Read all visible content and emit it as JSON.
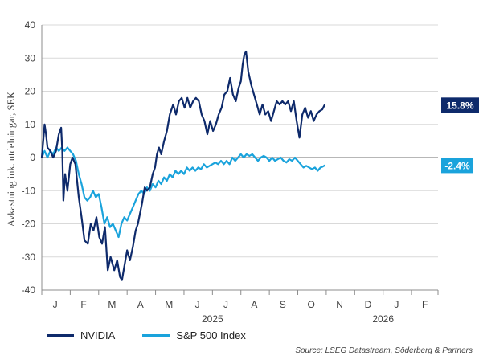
{
  "chart_data": {
    "type": "line",
    "ylabel": "Avkastning ink. utdelningar, SEK",
    "ylim": [
      -40,
      40
    ],
    "yticks": [
      "40",
      "30",
      "20",
      "10",
      "0",
      "-10",
      "-20",
      "-30",
      "-40"
    ],
    "x_month_labels": [
      "J",
      "F",
      "M",
      "A",
      "M",
      "J",
      "J",
      "A",
      "S",
      "O",
      "N",
      "D",
      "J",
      "F"
    ],
    "year_labels": [
      {
        "month_index": 6,
        "text": "2025"
      },
      {
        "month_index": 12,
        "text": "2026"
      }
    ],
    "series": [
      {
        "name": "NVIDIA",
        "color": "#0e2a6b",
        "end_label": "15.8%",
        "points": [
          [
            0.0,
            0
          ],
          [
            0.05,
            5
          ],
          [
            0.1,
            10
          ],
          [
            0.15,
            7
          ],
          [
            0.2,
            3
          ],
          [
            0.3,
            2
          ],
          [
            0.4,
            0
          ],
          [
            0.5,
            2
          ],
          [
            0.6,
            7
          ],
          [
            0.68,
            9
          ],
          [
            0.72,
            2
          ],
          [
            0.76,
            -13
          ],
          [
            0.82,
            -5
          ],
          [
            0.9,
            -10
          ],
          [
            1.0,
            -2
          ],
          [
            1.08,
            0
          ],
          [
            1.18,
            -2
          ],
          [
            1.3,
            -12
          ],
          [
            1.4,
            -18
          ],
          [
            1.5,
            -25
          ],
          [
            1.62,
            -26
          ],
          [
            1.72,
            -20
          ],
          [
            1.82,
            -22
          ],
          [
            1.92,
            -18
          ],
          [
            2.02,
            -24
          ],
          [
            2.12,
            -26
          ],
          [
            2.22,
            -21
          ],
          [
            2.32,
            -34
          ],
          [
            2.42,
            -30
          ],
          [
            2.55,
            -34
          ],
          [
            2.65,
            -31
          ],
          [
            2.75,
            -36
          ],
          [
            2.82,
            -37
          ],
          [
            2.9,
            -33
          ],
          [
            3.0,
            -28
          ],
          [
            3.1,
            -31
          ],
          [
            3.2,
            -27
          ],
          [
            3.3,
            -22
          ],
          [
            3.38,
            -20
          ],
          [
            3.45,
            -17
          ],
          [
            3.52,
            -14
          ],
          [
            3.62,
            -9
          ],
          [
            3.7,
            -10
          ],
          [
            3.8,
            -9
          ],
          [
            3.9,
            -5
          ],
          [
            3.98,
            -3
          ],
          [
            4.05,
            1
          ],
          [
            4.12,
            3
          ],
          [
            4.2,
            1
          ],
          [
            4.3,
            5
          ],
          [
            4.4,
            8
          ],
          [
            4.5,
            13
          ],
          [
            4.62,
            16
          ],
          [
            4.72,
            13
          ],
          [
            4.82,
            17
          ],
          [
            4.92,
            18
          ],
          [
            5.02,
            15
          ],
          [
            5.12,
            18
          ],
          [
            5.22,
            15
          ],
          [
            5.32,
            17
          ],
          [
            5.42,
            18
          ],
          [
            5.52,
            17
          ],
          [
            5.62,
            13
          ],
          [
            5.72,
            11
          ],
          [
            5.82,
            7
          ],
          [
            5.92,
            11
          ],
          [
            6.02,
            8
          ],
          [
            6.12,
            10
          ],
          [
            6.22,
            13
          ],
          [
            6.32,
            15
          ],
          [
            6.42,
            19
          ],
          [
            6.52,
            20
          ],
          [
            6.62,
            24
          ],
          [
            6.72,
            19
          ],
          [
            6.82,
            17
          ],
          [
            6.92,
            21
          ],
          [
            7.0,
            23
          ],
          [
            7.06,
            28
          ],
          [
            7.12,
            31
          ],
          [
            7.18,
            32
          ],
          [
            7.26,
            26
          ],
          [
            7.36,
            22
          ],
          [
            7.46,
            19
          ],
          [
            7.56,
            16
          ],
          [
            7.66,
            13
          ],
          [
            7.76,
            16
          ],
          [
            7.86,
            13
          ],
          [
            7.96,
            14
          ],
          [
            8.06,
            11
          ],
          [
            8.16,
            14
          ],
          [
            8.26,
            17
          ],
          [
            8.36,
            16
          ],
          [
            8.46,
            17
          ],
          [
            8.56,
            16
          ],
          [
            8.66,
            17
          ],
          [
            8.76,
            14
          ],
          [
            8.86,
            17
          ],
          [
            8.96,
            11
          ],
          [
            9.06,
            6
          ],
          [
            9.16,
            13
          ],
          [
            9.26,
            15
          ],
          [
            9.36,
            12
          ],
          [
            9.46,
            14
          ],
          [
            9.56,
            11
          ],
          [
            9.66,
            13
          ],
          [
            9.76,
            14
          ],
          [
            9.86,
            14.5
          ],
          [
            9.94,
            15.8
          ]
        ]
      },
      {
        "name": "S&P 500 Index",
        "color": "#1aa3dc",
        "end_label": "-2.4%",
        "points": [
          [
            0.0,
            0
          ],
          [
            0.1,
            2
          ],
          [
            0.2,
            0
          ],
          [
            0.3,
            2
          ],
          [
            0.4,
            1
          ],
          [
            0.5,
            3
          ],
          [
            0.6,
            2
          ],
          [
            0.7,
            3
          ],
          [
            0.8,
            2
          ],
          [
            0.9,
            3
          ],
          [
            1.0,
            2
          ],
          [
            1.1,
            1
          ],
          [
            1.2,
            -1
          ],
          [
            1.3,
            -5
          ],
          [
            1.4,
            -8
          ],
          [
            1.5,
            -12
          ],
          [
            1.6,
            -13
          ],
          [
            1.7,
            -12
          ],
          [
            1.8,
            -10
          ],
          [
            1.9,
            -12
          ],
          [
            2.0,
            -11
          ],
          [
            2.1,
            -15
          ],
          [
            2.2,
            -20
          ],
          [
            2.3,
            -18
          ],
          [
            2.4,
            -21
          ],
          [
            2.5,
            -20
          ],
          [
            2.6,
            -22
          ],
          [
            2.7,
            -24
          ],
          [
            2.8,
            -20
          ],
          [
            2.9,
            -18
          ],
          [
            3.0,
            -19
          ],
          [
            3.1,
            -17
          ],
          [
            3.2,
            -15
          ],
          [
            3.3,
            -13
          ],
          [
            3.4,
            -11
          ],
          [
            3.5,
            -10
          ],
          [
            3.6,
            -11
          ],
          [
            3.7,
            -9
          ],
          [
            3.8,
            -10
          ],
          [
            3.9,
            -8
          ],
          [
            4.0,
            -9
          ],
          [
            4.1,
            -7
          ],
          [
            4.2,
            -8
          ],
          [
            4.3,
            -6
          ],
          [
            4.4,
            -7
          ],
          [
            4.5,
            -5
          ],
          [
            4.6,
            -6
          ],
          [
            4.7,
            -4
          ],
          [
            4.8,
            -5
          ],
          [
            4.9,
            -4
          ],
          [
            5.0,
            -5
          ],
          [
            5.1,
            -3
          ],
          [
            5.2,
            -4
          ],
          [
            5.3,
            -3
          ],
          [
            5.4,
            -4
          ],
          [
            5.5,
            -3
          ],
          [
            5.6,
            -3.5
          ],
          [
            5.7,
            -2
          ],
          [
            5.8,
            -3
          ],
          [
            5.9,
            -2.5
          ],
          [
            6.0,
            -2
          ],
          [
            6.1,
            -1.5
          ],
          [
            6.2,
            -2
          ],
          [
            6.3,
            -1
          ],
          [
            6.4,
            -2
          ],
          [
            6.5,
            -1
          ],
          [
            6.6,
            -2
          ],
          [
            6.7,
            0
          ],
          [
            6.8,
            -1
          ],
          [
            6.9,
            0
          ],
          [
            7.0,
            1
          ],
          [
            7.1,
            0
          ],
          [
            7.2,
            1
          ],
          [
            7.3,
            0.5
          ],
          [
            7.4,
            1
          ],
          [
            7.5,
            0
          ],
          [
            7.6,
            -1
          ],
          [
            7.7,
            0
          ],
          [
            7.8,
            0.5
          ],
          [
            7.9,
            0
          ],
          [
            8.0,
            -1
          ],
          [
            8.1,
            0
          ],
          [
            8.2,
            -1
          ],
          [
            8.3,
            -0.5
          ],
          [
            8.4,
            0
          ],
          [
            8.5,
            -1
          ],
          [
            8.6,
            -1.5
          ],
          [
            8.7,
            -0.5
          ],
          [
            8.8,
            -1
          ],
          [
            8.9,
            0
          ],
          [
            9.0,
            -1
          ],
          [
            9.1,
            -2
          ],
          [
            9.2,
            -3
          ],
          [
            9.3,
            -2.5
          ],
          [
            9.4,
            -3
          ],
          [
            9.5,
            -3.5
          ],
          [
            9.6,
            -3
          ],
          [
            9.7,
            -4
          ],
          [
            9.8,
            -3
          ],
          [
            9.87,
            -2.8
          ],
          [
            9.94,
            -2.4
          ]
        ]
      }
    ],
    "grid": "horizontal",
    "legend_position": "bottom-left"
  },
  "source": "Source: LSEG Datastream, Söderberg & Partners"
}
